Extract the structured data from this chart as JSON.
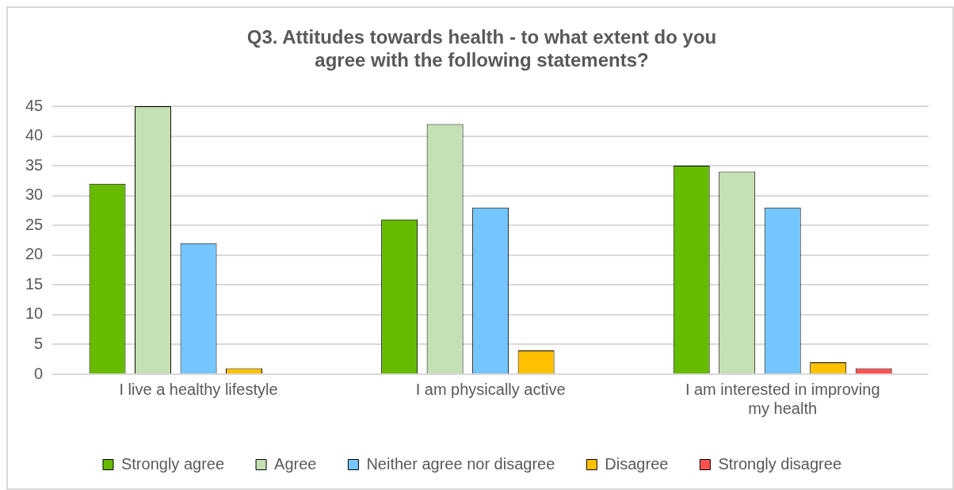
{
  "chart_data": {
    "type": "bar",
    "title": "Q3. Attitudes towards health - to what extent do you agree with the following statements?",
    "categories": [
      "I live a healthy lifestyle",
      "I am physically active",
      "I am interested in improving my health"
    ],
    "series": [
      {
        "name": "Strongly agree",
        "color": "#66bb00",
        "values": [
          32,
          26,
          35
        ]
      },
      {
        "name": "Agree",
        "color": "#c5e0b4",
        "values": [
          45,
          42,
          34
        ]
      },
      {
        "name": "Neither agree nor disagree",
        "color": "#75c6ff",
        "values": [
          22,
          28,
          28
        ]
      },
      {
        "name": "Disagree",
        "color": "#ffc000",
        "values": [
          1,
          4,
          2
        ]
      },
      {
        "name": "Strongly disagree",
        "color": "#ff5050",
        "values": [
          0,
          0,
          1
        ]
      }
    ],
    "ylim": [
      0,
      45
    ],
    "yticks": [
      0,
      5,
      10,
      15,
      20,
      25,
      30,
      35,
      40,
      45
    ],
    "grid": "y",
    "legend": "bottom"
  }
}
